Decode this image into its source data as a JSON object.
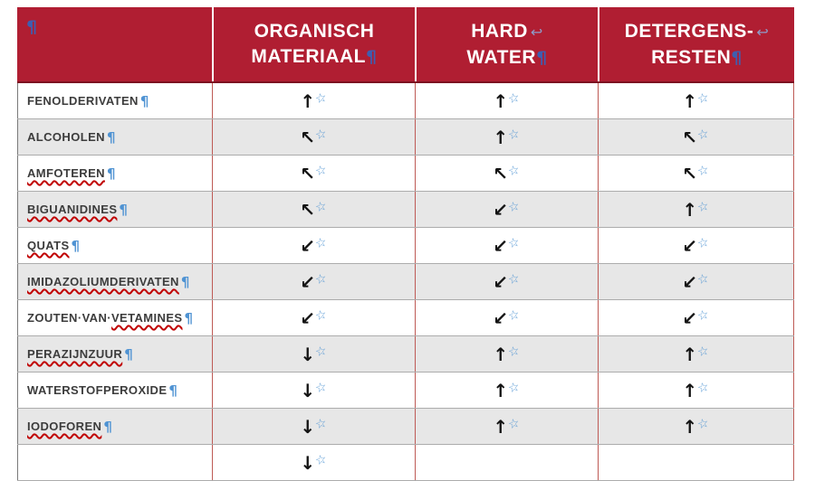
{
  "colors": {
    "header_bg": "#B01E32",
    "header_edge": "#7C1322",
    "header_text": "#FFFFFF",
    "header_pilcrow": "#3E5EB0",
    "soft_return_mark": "#8E9CC8",
    "body_pilcrow": "#4F93D3",
    "label_text": "#3C3C3C",
    "arrow": "#141414",
    "star": "#5B9BD5",
    "row_even_bg": "#E7E7E7",
    "row_odd_bg": "#FFFFFF",
    "grid_vertical": "#BE5A55",
    "grid_horizontal": "#ACACAC",
    "outer_left": "#7A7A7A",
    "squiggle": "#C00000"
  },
  "glyphs": {
    "pilcrow": "¶",
    "soft_return": "↩",
    "star": "☆",
    "arrows": {
      "up": "↑",
      "up-left": "↖",
      "down-left": "↙",
      "down": "↓"
    }
  },
  "table": {
    "header": {
      "corner_pilcrow": "¶",
      "columns": [
        {
          "line1": "ORGANISCH",
          "line2": "MATERIAAL",
          "soft_return": false
        },
        {
          "line1": "HARD",
          "line2": "WATER",
          "soft_return": true
        },
        {
          "line1": "DETERGENS-",
          "line2": "RESTEN",
          "soft_return": true
        }
      ]
    },
    "rows": [
      {
        "label": [
          {
            "t": "FENOLDERIVATEN",
            "sp": false
          }
        ],
        "cells": [
          "up",
          "up",
          "up"
        ]
      },
      {
        "label": [
          {
            "t": "ALCOHOLEN",
            "sp": false
          }
        ],
        "cells": [
          "up-left",
          "up",
          "up-left"
        ]
      },
      {
        "label": [
          {
            "t": "AMFOTEREN",
            "sp": true
          }
        ],
        "cells": [
          "up-left",
          "up-left",
          "up-left"
        ]
      },
      {
        "label": [
          {
            "t": "BIGUANIDINES",
            "sp": true
          }
        ],
        "cells": [
          "up-left",
          "down-left",
          "up"
        ]
      },
      {
        "label": [
          {
            "t": "QUATS",
            "sp": true
          }
        ],
        "cells": [
          "down-left",
          "down-left",
          "down-left"
        ]
      },
      {
        "label": [
          {
            "t": "IMIDAZOLIUMDERIVATEN",
            "sp": true
          }
        ],
        "cells": [
          "down-left",
          "down-left",
          "down-left"
        ]
      },
      {
        "label": [
          {
            "t": "ZOUTEN·VAN·",
            "sp": false
          },
          {
            "t": "VETAMINES",
            "sp": true
          }
        ],
        "cells": [
          "down-left",
          "down-left",
          "down-left"
        ]
      },
      {
        "label": [
          {
            "t": "PERAZIJNZUUR",
            "sp": true
          }
        ],
        "cells": [
          "down",
          "up",
          "up"
        ]
      },
      {
        "label": [
          {
            "t": "WATERSTOFPEROXIDE",
            "sp": false
          }
        ],
        "cells": [
          "down",
          "up",
          "up"
        ]
      },
      {
        "label": [
          {
            "t": "IODOFOREN",
            "sp": true
          }
        ],
        "cells": [
          "down",
          "up",
          "up"
        ]
      }
    ],
    "partial_row": {
      "cells": [
        "down",
        "",
        ""
      ]
    }
  }
}
